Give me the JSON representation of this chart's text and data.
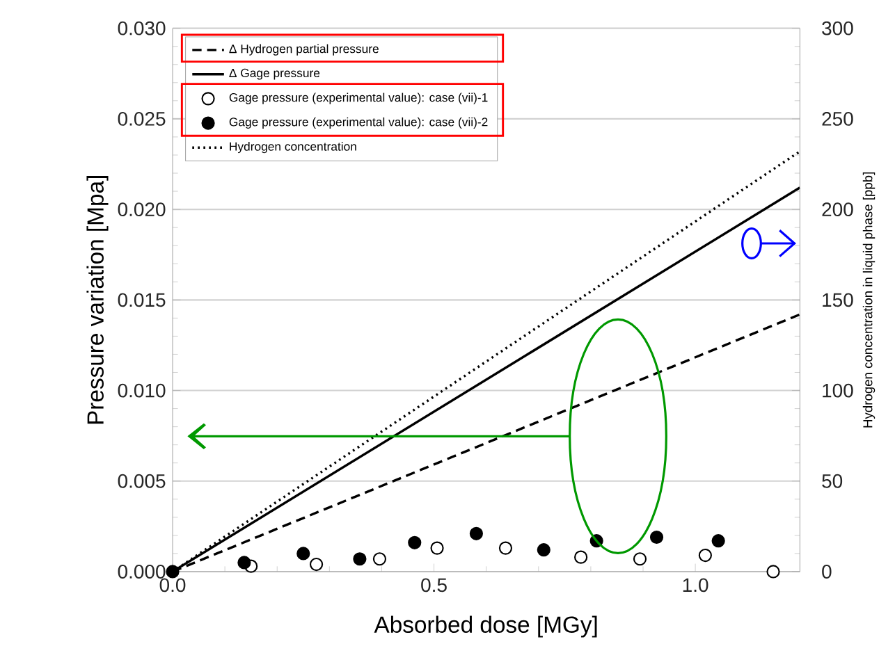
{
  "chart_data": {
    "type": "line",
    "xlabel": "Absorbed dose [MGy]",
    "ylabel": "Pressure variation [Mpa]",
    "y2label": "Hydrogen concentration in liquid phase [ppb]",
    "xlim": [
      0,
      1.2
    ],
    "xticks": [
      {
        "value": 0,
        "label": "0.0"
      },
      0.5,
      {
        "value": 1,
        "label": "1.0"
      }
    ],
    "ylim": [
      0,
      0.03
    ],
    "yticks": [
      {
        "value": 0,
        "label": "0.000"
      },
      {
        "value": 0.005,
        "label": "0.005"
      },
      {
        "value": 0.01,
        "label": "0.010"
      },
      {
        "value": 0.015,
        "label": "0.015"
      },
      {
        "value": 0.02,
        "label": "0.020"
      },
      {
        "value": 0.025,
        "label": "0.025"
      },
      {
        "value": 0.03,
        "label": "0.030"
      }
    ],
    "y2lim": [
      0,
      300
    ],
    "y2ticks": [
      0,
      50,
      100,
      150,
      200,
      250,
      300
    ],
    "grid": "y",
    "legend": "top left",
    "series": [
      {
        "name": "Δ Hydrogen partial pressure",
        "line_style": "dashed",
        "marker": "none",
        "color": "#000000",
        "x": [
          0,
          1.2
        ],
        "values": [
          0,
          0.0142
        ]
      },
      {
        "name": "Δ Gage pressure",
        "line_style": "solid",
        "marker": "none",
        "color": "#000000",
        "x": [
          0,
          1.2
        ],
        "values": [
          0,
          0.0212
        ]
      },
      {
        "name": "Gage pressure (experimental value): case (vii)-1",
        "type": "scatter",
        "marker": "circle",
        "color": "#ffffff",
        "x": [
          0.15,
          0.275,
          0.396,
          0.506,
          0.637,
          0.781,
          0.894,
          1.019,
          1.149
        ],
        "values": [
          0.0003,
          0.0004,
          0.0007,
          0.0013,
          0.0013,
          0.0008,
          0.0007,
          0.0009,
          0
        ]
      },
      {
        "name": "Gage pressure (experimental value): case (vii)-2",
        "type": "scatter",
        "marker": "circle",
        "color": "#000000",
        "x": [
          0,
          0.137,
          0.25,
          0.358,
          0.463,
          0.581,
          0.71,
          0.811,
          0.926,
          1.044
        ],
        "values": [
          0,
          0.0005,
          0.001,
          0.0007,
          0.0016,
          0.0021,
          0.0012,
          0.0017,
          0.0019,
          0.0017
        ]
      },
      {
        "name": "Hydrogen concentration",
        "line_style": "dotted",
        "marker": "none",
        "color": "#000000",
        "axis": "y2",
        "x": [
          0,
          1.2
        ],
        "values": [
          0,
          232
        ]
      }
    ]
  }
}
